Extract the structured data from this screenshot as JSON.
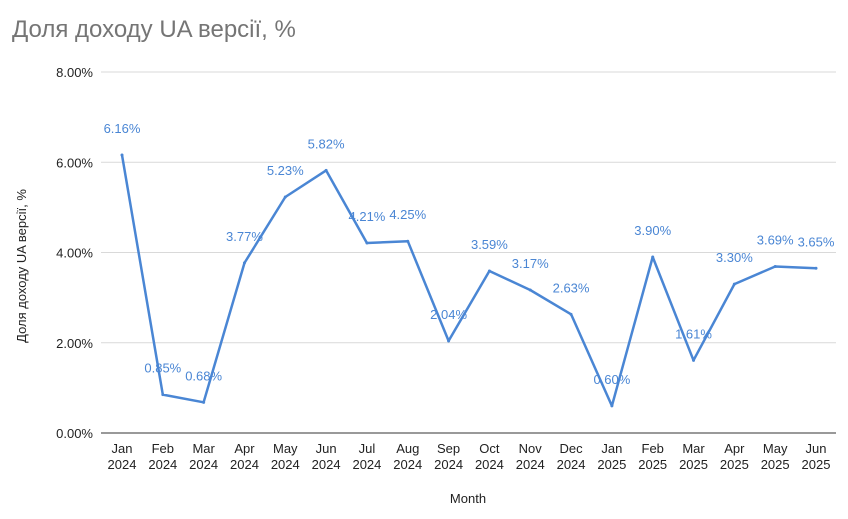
{
  "chart_data": {
    "type": "line",
    "title": "Доля доходу UA версії, %",
    "xlabel": "Month",
    "ylabel": "Доля доходу UA версії, %",
    "ylim": [
      0,
      8
    ],
    "yticks": [
      "0.00%",
      "2.00%",
      "4.00%",
      "6.00%",
      "8.00%"
    ],
    "grid": true,
    "legend": "none",
    "categories": [
      [
        "Jan",
        "2024"
      ],
      [
        "Feb",
        "2024"
      ],
      [
        "Mar",
        "2024"
      ],
      [
        "Apr",
        "2024"
      ],
      [
        "May",
        "2024"
      ],
      [
        "Jun",
        "2024"
      ],
      [
        "Jul",
        "2024"
      ],
      [
        "Aug",
        "2024"
      ],
      [
        "Sep",
        "2024"
      ],
      [
        "Oct",
        "2024"
      ],
      [
        "Nov",
        "2024"
      ],
      [
        "Dec",
        "2024"
      ],
      [
        "Jan",
        "2025"
      ],
      [
        "Feb",
        "2025"
      ],
      [
        "Mar",
        "2025"
      ],
      [
        "Apr",
        "2025"
      ],
      [
        "May",
        "2025"
      ],
      [
        "Jun",
        "2025"
      ]
    ],
    "series": [
      {
        "name": "Доля доходу UA версії, %",
        "color": "#4a86d4",
        "values": [
          6.16,
          0.85,
          0.68,
          3.77,
          5.23,
          5.82,
          4.21,
          4.25,
          2.04,
          3.59,
          3.17,
          2.63,
          0.6,
          3.9,
          1.61,
          3.3,
          3.69,
          3.65
        ],
        "labels": [
          "6.16%",
          "0.85%",
          "0.68%",
          "3.77%",
          "5.23%",
          "5.82%",
          "4.21%",
          "4.25%",
          "2.04%",
          "3.59%",
          "3.17%",
          "2.63%",
          "0.60%",
          "3.90%",
          "1.61%",
          "3.30%",
          "3.69%",
          "3.65%"
        ]
      }
    ]
  }
}
